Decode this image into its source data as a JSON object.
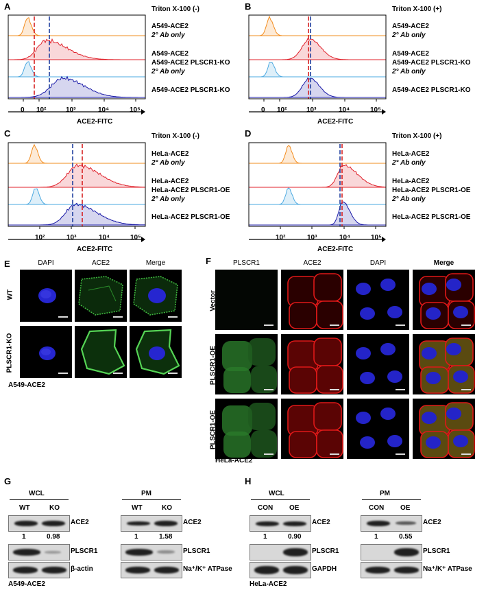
{
  "panels": {
    "A": {
      "letter": "A",
      "condition": "Triton X-100 (-)",
      "xlabel": "ACE2-FITC",
      "ticks": [
        "0",
        "10²",
        "10³",
        "10⁴",
        "10⁵"
      ],
      "rows": [
        {
          "l1": "A549-ACE2",
          "l2": "2° Ab only"
        },
        {
          "l1": "A549-ACE2",
          "l2": ""
        },
        {
          "l1": "A549-ACE2 PLSCR1-KO",
          "l2": "2° Ab only"
        },
        {
          "l1": "A549-ACE2 PLSCR1-KO",
          "l2": ""
        }
      ]
    },
    "B": {
      "letter": "B",
      "condition": "Triton X-100 (+)",
      "xlabel": "ACE2-FITC",
      "ticks": [
        "0",
        "10²",
        "10³",
        "10⁴",
        "10⁵"
      ],
      "rows": [
        {
          "l1": "A549-ACE2",
          "l2": "2° Ab only"
        },
        {
          "l1": "A549-ACE2",
          "l2": ""
        },
        {
          "l1": "A549-ACE2 PLSCR1-KO",
          "l2": "2° Ab only"
        },
        {
          "l1": "A549-ACE2 PLSCR1-KO",
          "l2": ""
        }
      ]
    },
    "C": {
      "letter": "C",
      "condition": "Triton X-100 (-)",
      "xlabel": "ACE2-FITC",
      "ticks": [
        "10²",
        "10³",
        "10⁴",
        "10⁵"
      ],
      "rows": [
        {
          "l1": "HeLa-ACE2",
          "l2": "2° Ab only"
        },
        {
          "l1": "HeLa-ACE2",
          "l2": ""
        },
        {
          "l1": "HeLa-ACE2 PLSCR1-OE",
          "l2": "2° Ab only"
        },
        {
          "l1": "HeLa-ACE2 PLSCR1-OE",
          "l2": ""
        }
      ]
    },
    "D": {
      "letter": "D",
      "condition": "Triton X-100 (+)",
      "xlabel": "ACE2-FITC",
      "ticks": [
        "10²",
        "10³",
        "10⁴",
        "10⁵"
      ],
      "rows": [
        {
          "l1": "HeLa-ACE2",
          "l2": "2° Ab only"
        },
        {
          "l1": "HeLa-ACE2",
          "l2": ""
        },
        {
          "l1": "HeLa-ACE2 PLSCR1-OE",
          "l2": "2° Ab only"
        },
        {
          "l1": "HeLa-ACE2 PLSCR1-OE",
          "l2": ""
        }
      ]
    },
    "E": {
      "letter": "E",
      "columns": [
        "DAPI",
        "ACE2",
        "Merge"
      ],
      "rows": [
        "WT",
        "PLSCR1-KO"
      ],
      "cell_line": "A549-ACE2"
    },
    "F": {
      "letter": "F",
      "columns": [
        "PLSCR1",
        "ACE2",
        "DAPI",
        "Merge"
      ],
      "rows": [
        "Vector",
        "PLSCR1-OE",
        "PLSCR1-OE"
      ],
      "cell_line": "HeLa-ACE2"
    },
    "G": {
      "letter": "G",
      "cell_line": "A549-ACE2",
      "left": {
        "group": "WCL",
        "lanes": [
          "WT",
          "KO"
        ],
        "ratios": [
          "1",
          "0.98"
        ],
        "labels": [
          "ACE2",
          "PLSCR1",
          "β-actin"
        ]
      },
      "right": {
        "group": "PM",
        "lanes": [
          "WT",
          "KO"
        ],
        "ratios": [
          "1",
          "1.58"
        ],
        "labels": [
          "ACE2",
          "PLSCR1",
          "Na⁺/K⁺ ATPase"
        ]
      }
    },
    "H": {
      "letter": "H",
      "cell_line": "HeLa-ACE2",
      "left": {
        "group": "WCL",
        "lanes": [
          "CON",
          "OE"
        ],
        "ratios": [
          "1",
          "0.90"
        ],
        "labels": [
          "ACE2",
          "PLSCR1",
          "GAPDH"
        ]
      },
      "right": {
        "group": "PM",
        "lanes": [
          "CON",
          "OE"
        ],
        "ratios": [
          "1",
          "0.55"
        ],
        "labels": [
          "ACE2",
          "PLSCR1",
          "Na⁺/K⁺ ATPase"
        ]
      }
    }
  },
  "colors": {
    "orange": "#f28c1e",
    "red": "#e0202a",
    "light_blue": "#4aa8e0",
    "dark_blue": "#1a1aa8",
    "dash_red": "#d62020",
    "dash_blue": "#1f3f9f"
  }
}
